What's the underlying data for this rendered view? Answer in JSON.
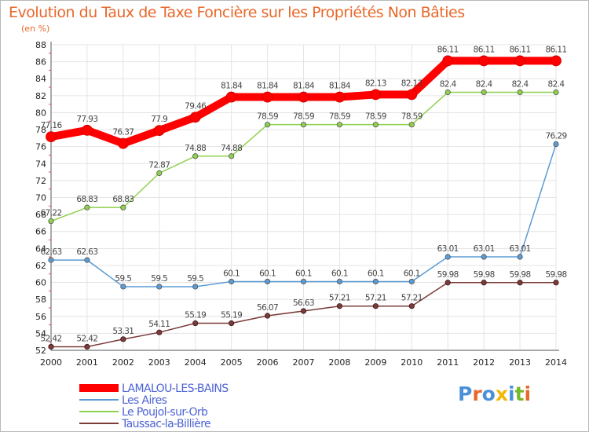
{
  "header": {
    "title": "Evolution du Taux de Taxe Foncière sur les Propriétés Non Bâties",
    "unit": "(en %)"
  },
  "logo": {
    "text": "Proxiti",
    "colors": [
      "#4a90d9",
      "#e8682a",
      "#4a90d9",
      "#f2b705",
      "#4a90d9",
      "#7ab82b",
      "#e8682a"
    ]
  },
  "chart_data": {
    "type": "line",
    "title": "Evolution du Taux de Taxe Foncière sur les Propriétés Non Bâties",
    "ylabel": "(en %)",
    "xlabel": "",
    "x": [
      "2000",
      "2001",
      "2002",
      "2003",
      "2004",
      "2005",
      "2006",
      "2007",
      "2008",
      "2009",
      "2010",
      "2011",
      "2012",
      "2013",
      "2014"
    ],
    "ylim": [
      52,
      88
    ],
    "yticks": [
      52,
      54,
      56,
      58,
      60,
      62,
      64,
      66,
      68,
      70,
      72,
      74,
      76,
      78,
      80,
      82,
      84,
      86,
      88
    ],
    "grid": true,
    "legend_position": "bottom-left",
    "series": [
      {
        "name": "LAMALOU-LES-BAINS",
        "color": "#ff0000",
        "values": [
          77.16,
          77.93,
          76.37,
          77.9,
          79.46,
          81.84,
          81.84,
          81.84,
          81.84,
          82.13,
          82.13,
          86.11,
          86.11,
          86.11,
          86.11
        ],
        "labels": [
          "77.16",
          "77.93",
          "76.37",
          "77.9",
          "79.46",
          "81.84",
          "81.84",
          "81.84",
          "81.84",
          "82.13",
          "82.13",
          "86.11",
          "86.11",
          "86.11",
          "86.11"
        ]
      },
      {
        "name": "Les Aires",
        "color": "#5b9bd5",
        "values": [
          62.63,
          62.63,
          59.5,
          59.5,
          59.5,
          60.1,
          60.1,
          60.1,
          60.1,
          60.1,
          60.1,
          63.01,
          63.01,
          63.01,
          76.29
        ],
        "labels": [
          "62.63",
          "62.63",
          "59.5",
          "59.5",
          "59.5",
          "60.1",
          "60.1",
          "60.1",
          "60.1",
          "60.1",
          "60.1",
          "63.01",
          "63.01",
          "63.01",
          "76.29"
        ]
      },
      {
        "name": "Le Poujol-sur-Orb",
        "color": "#8fd14f",
        "values": [
          67.22,
          68.83,
          68.83,
          72.87,
          74.88,
          74.88,
          78.59,
          78.59,
          78.59,
          78.59,
          78.59,
          82.4,
          82.4,
          82.4,
          82.4
        ],
        "labels": [
          "67.22",
          "68.83",
          "68.83",
          "72.87",
          "74.88",
          "74.88",
          "78.59",
          "78.59",
          "78.59",
          "78.59",
          "78.59",
          "82.4",
          "82.4",
          "82.4",
          "82.4"
        ]
      },
      {
        "name": "Taussac-la-Billière",
        "color": "#7b3b3b",
        "values": [
          52.42,
          52.42,
          53.31,
          54.11,
          55.19,
          55.19,
          56.07,
          56.63,
          57.21,
          57.21,
          57.21,
          59.98,
          59.98,
          59.98,
          59.98
        ],
        "labels": [
          "52.42",
          "52.42",
          "53.31",
          "54.11",
          "55.19",
          "55.19",
          "56.07",
          "56.63",
          "57.21",
          "57.21",
          "57.21",
          "59.98",
          "59.98",
          "59.98",
          "59.98"
        ]
      }
    ]
  }
}
